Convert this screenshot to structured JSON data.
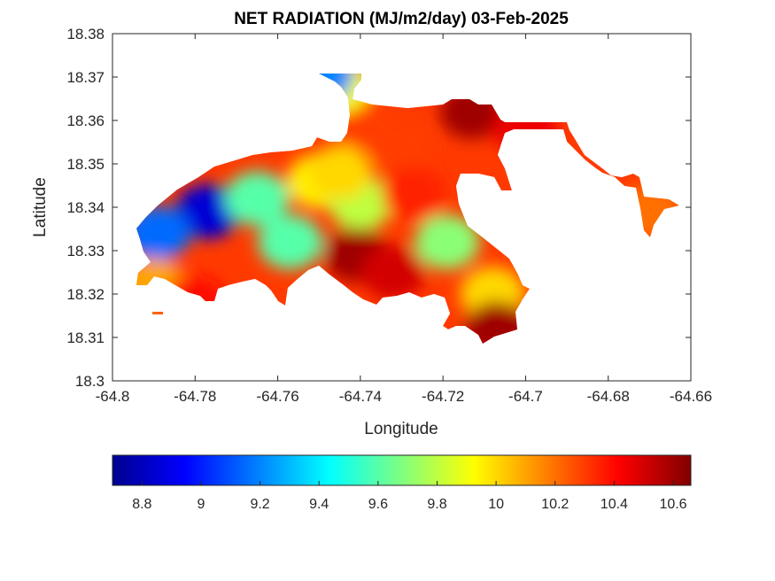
{
  "chart_data": {
    "type": "heatmap",
    "title": "NET RADIATION (MJ/m2/day) 03-Feb-2025",
    "xlabel": "Longitude",
    "ylabel": "Latitude",
    "xlim": [
      -64.8,
      -64.66
    ],
    "ylim": [
      18.3,
      18.38
    ],
    "x_ticks": [
      -64.8,
      -64.78,
      -64.76,
      -64.74,
      -64.72,
      -64.7,
      -64.68,
      -64.66
    ],
    "x_tick_labels": [
      "-64.8",
      "-64.78",
      "-64.76",
      "-64.74",
      "-64.72",
      "-64.7",
      "-64.68",
      "-64.66"
    ],
    "y_ticks": [
      18.3,
      18.31,
      18.32,
      18.33,
      18.34,
      18.35,
      18.36,
      18.37,
      18.38
    ],
    "y_tick_labels": [
      "18.3",
      "18.31",
      "18.32",
      "18.33",
      "18.34",
      "18.35",
      "18.36",
      "18.37",
      "18.38"
    ],
    "colormap": "jet",
    "colorbar": {
      "location": "bottom",
      "clim": [
        8.7,
        10.66
      ],
      "ticks": [
        8.8,
        9,
        9.2,
        9.4,
        9.6,
        9.8,
        10,
        10.2,
        10.4,
        10.6
      ],
      "tick_labels": [
        "8.8",
        "9",
        "9.2",
        "9.4",
        "9.6",
        "9.8",
        "10",
        "10.2",
        "10.4",
        "10.6"
      ]
    },
    "grid": false,
    "field_centers": [
      {
        "lon": -64.777,
        "lat": 18.339,
        "value": 8.85
      },
      {
        "lon": -64.789,
        "lat": 18.334,
        "value": 9.15
      },
      {
        "lon": -64.765,
        "lat": 18.342,
        "value": 9.6
      },
      {
        "lon": -64.757,
        "lat": 18.332,
        "value": 9.6
      },
      {
        "lon": -64.75,
        "lat": 18.346,
        "value": 9.95
      },
      {
        "lon": -64.74,
        "lat": 18.341,
        "value": 9.8
      },
      {
        "lon": -64.719,
        "lat": 18.332,
        "value": 9.7
      },
      {
        "lon": -64.708,
        "lat": 18.32,
        "value": 10.0
      },
      {
        "lon": -64.745,
        "lat": 18.348,
        "value": 10.0
      },
      {
        "lon": -64.741,
        "lat": 18.329,
        "value": 10.6
      },
      {
        "lon": -64.732,
        "lat": 18.325,
        "value": 10.5
      },
      {
        "lon": -64.713,
        "lat": 18.362,
        "value": 10.6
      },
      {
        "lon": -64.73,
        "lat": 18.354,
        "value": 10.3
      },
      {
        "lon": -64.727,
        "lat": 18.343,
        "value": 10.35
      },
      {
        "lon": -64.74,
        "lat": 18.36,
        "value": 10.3
      },
      {
        "lon": -64.745,
        "lat": 18.368,
        "value": 9.9
      },
      {
        "lon": -64.7495,
        "lat": 18.3705,
        "value": 9.2
      },
      {
        "lon": -64.7,
        "lat": 18.358,
        "value": 10.45
      },
      {
        "lon": -64.67,
        "lat": 18.339,
        "value": 10.2
      },
      {
        "lon": -64.707,
        "lat": 18.312,
        "value": 10.6
      },
      {
        "lon": -64.79,
        "lat": 18.322,
        "value": 10.1
      },
      {
        "lon": -64.78,
        "lat": 18.318,
        "value": 10.4
      }
    ]
  }
}
